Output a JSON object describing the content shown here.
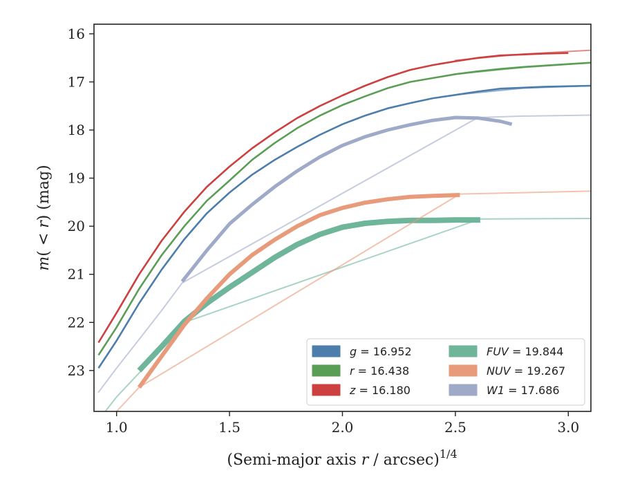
{
  "chart_data": {
    "type": "line",
    "xlabel": "(Semi-major axis r / arcsec)^1/4",
    "xlabel_parts": {
      "prefix": "(Semi-major axis ",
      "var": "r",
      "suffix": " / arcsec)",
      "sup": "1/4"
    },
    "ylabel": "m(< r) (mag)",
    "ylabel_parts": {
      "var": "m",
      "mid": "( < ",
      "var2": "r",
      "suffix": ") (mag)"
    },
    "xlim": [
      0.9,
      3.1
    ],
    "ylim": [
      23.85,
      15.8
    ],
    "y_inverted": true,
    "xticks": [
      1.0,
      1.5,
      2.0,
      2.5,
      3.0
    ],
    "xtick_labels": [
      "1.0",
      "1.5",
      "2.0",
      "2.5",
      "3.0"
    ],
    "yticks": [
      16,
      17,
      18,
      19,
      20,
      21,
      22,
      23
    ],
    "ytick_labels": [
      "16",
      "17",
      "18",
      "19",
      "20",
      "21",
      "22",
      "23"
    ],
    "grid": false,
    "legend_position": "lower-right",
    "series": [
      {
        "name": "g",
        "legend_var": "g",
        "legend_value": "= 16.952",
        "color": "#4c7dab",
        "measured": [
          [
            0.92,
            22.95
          ],
          [
            1.0,
            22.38
          ],
          [
            1.1,
            21.6
          ],
          [
            1.2,
            20.9
          ],
          [
            1.3,
            20.27
          ],
          [
            1.4,
            19.73
          ],
          [
            1.5,
            19.3
          ],
          [
            1.6,
            18.93
          ],
          [
            1.7,
            18.62
          ],
          [
            1.8,
            18.35
          ],
          [
            1.9,
            18.1
          ],
          [
            2.0,
            17.88
          ],
          [
            2.1,
            17.7
          ],
          [
            2.2,
            17.55
          ],
          [
            2.3,
            17.44
          ],
          [
            2.4,
            17.34
          ],
          [
            2.5,
            17.27
          ],
          [
            2.6,
            17.2
          ],
          [
            2.7,
            17.14
          ],
          [
            2.8,
            17.12
          ],
          [
            2.9,
            17.1
          ],
          [
            3.1,
            17.08
          ]
        ],
        "model": [
          [
            2.5,
            17.27
          ],
          [
            2.8,
            17.13
          ],
          [
            3.1,
            17.08
          ]
        ]
      },
      {
        "name": "r",
        "legend_var": "r",
        "legend_value": "= 16.438",
        "color": "#5a9e55",
        "measured": [
          [
            0.92,
            22.68
          ],
          [
            1.0,
            22.1
          ],
          [
            1.1,
            21.3
          ],
          [
            1.2,
            20.6
          ],
          [
            1.3,
            20.0
          ],
          [
            1.4,
            19.47
          ],
          [
            1.5,
            19.05
          ],
          [
            1.6,
            18.62
          ],
          [
            1.7,
            18.27
          ],
          [
            1.8,
            17.96
          ],
          [
            1.9,
            17.7
          ],
          [
            2.0,
            17.48
          ],
          [
            2.1,
            17.3
          ],
          [
            2.2,
            17.13
          ],
          [
            2.3,
            17.0
          ],
          [
            2.4,
            16.92
          ],
          [
            2.5,
            16.84
          ],
          [
            2.6,
            16.78
          ],
          [
            2.7,
            16.73
          ],
          [
            2.8,
            16.69
          ],
          [
            2.9,
            16.66
          ],
          [
            3.0,
            16.63
          ],
          [
            3.1,
            16.6
          ]
        ],
        "model": [
          [
            2.5,
            16.84
          ],
          [
            2.8,
            16.7
          ],
          [
            3.1,
            16.6
          ]
        ]
      },
      {
        "name": "z",
        "legend_var": "z",
        "legend_value": "= 16.180",
        "color": "#cc4040",
        "measured": [
          [
            0.92,
            22.42
          ],
          [
            1.0,
            21.8
          ],
          [
            1.1,
            21.0
          ],
          [
            1.2,
            20.3
          ],
          [
            1.3,
            19.7
          ],
          [
            1.4,
            19.18
          ],
          [
            1.5,
            18.76
          ],
          [
            1.6,
            18.38
          ],
          [
            1.7,
            18.05
          ],
          [
            1.8,
            17.75
          ],
          [
            1.9,
            17.5
          ],
          [
            2.0,
            17.28
          ],
          [
            2.1,
            17.08
          ],
          [
            2.2,
            16.9
          ],
          [
            2.3,
            16.75
          ],
          [
            2.4,
            16.65
          ],
          [
            2.5,
            16.57
          ],
          [
            2.6,
            16.5
          ],
          [
            2.7,
            16.45
          ],
          [
            2.8,
            16.43
          ],
          [
            2.9,
            16.41
          ],
          [
            3.0,
            16.4
          ]
        ],
        "model": [
          [
            2.5,
            16.55
          ],
          [
            2.8,
            16.42
          ],
          [
            3.1,
            16.34
          ]
        ]
      },
      {
        "name": "FUV",
        "legend_var": "FUV",
        "legend_value": "= 19.844",
        "color": "#6fb59a",
        "measured": [
          [
            1.1,
            23.0
          ],
          [
            1.2,
            22.5
          ],
          [
            1.3,
            21.98
          ],
          [
            1.4,
            21.6
          ],
          [
            1.5,
            21.27
          ],
          [
            1.6,
            20.96
          ],
          [
            1.7,
            20.65
          ],
          [
            1.8,
            20.38
          ],
          [
            1.9,
            20.17
          ],
          [
            2.0,
            20.02
          ],
          [
            2.1,
            19.94
          ],
          [
            2.2,
            19.9
          ],
          [
            2.3,
            19.88
          ],
          [
            2.4,
            19.88
          ],
          [
            2.5,
            19.87
          ],
          [
            2.61,
            19.87
          ]
        ],
        "model": [
          [
            0.95,
            23.85
          ],
          [
            1.0,
            23.55
          ],
          [
            1.1,
            23.05
          ],
          [
            1.2,
            22.55
          ],
          [
            1.3,
            22.0
          ],
          [
            2.61,
            19.85
          ],
          [
            3.1,
            19.84
          ]
        ]
      },
      {
        "name": "NUV",
        "legend_var": "NUV",
        "legend_value": "= 19.267",
        "color": "#e89b7a",
        "measured": [
          [
            1.1,
            23.35
          ],
          [
            1.2,
            22.7
          ],
          [
            1.3,
            22.05
          ],
          [
            1.4,
            21.5
          ],
          [
            1.5,
            21.0
          ],
          [
            1.6,
            20.6
          ],
          [
            1.7,
            20.28
          ],
          [
            1.8,
            20.0
          ],
          [
            1.9,
            19.77
          ],
          [
            2.0,
            19.62
          ],
          [
            2.1,
            19.51
          ],
          [
            2.2,
            19.44
          ],
          [
            2.3,
            19.39
          ],
          [
            2.4,
            19.37
          ],
          [
            2.52,
            19.35
          ]
        ],
        "model": [
          [
            1.0,
            23.85
          ],
          [
            1.1,
            23.35
          ],
          [
            2.52,
            19.33
          ],
          [
            3.1,
            19.27
          ]
        ]
      },
      {
        "name": "W1",
        "legend_var": "W1",
        "legend_value": "= 17.686",
        "color": "#9eaac8",
        "measured": [
          [
            1.29,
            21.15
          ],
          [
            1.4,
            20.5
          ],
          [
            1.5,
            19.95
          ],
          [
            1.6,
            19.55
          ],
          [
            1.7,
            19.18
          ],
          [
            1.8,
            18.85
          ],
          [
            1.9,
            18.56
          ],
          [
            2.0,
            18.32
          ],
          [
            2.1,
            18.14
          ],
          [
            2.2,
            18.0
          ],
          [
            2.3,
            17.89
          ],
          [
            2.4,
            17.8
          ],
          [
            2.5,
            17.74
          ],
          [
            2.6,
            17.75
          ],
          [
            2.7,
            17.82
          ],
          [
            2.75,
            17.88
          ]
        ],
        "model": [
          [
            0.92,
            23.45
          ],
          [
            1.0,
            22.95
          ],
          [
            1.1,
            22.35
          ],
          [
            1.2,
            21.75
          ],
          [
            1.29,
            21.18
          ],
          [
            2.6,
            17.74
          ],
          [
            2.8,
            17.71
          ],
          [
            3.1,
            17.69
          ]
        ]
      }
    ],
    "legend_columns": [
      [
        "g",
        "r",
        "z"
      ],
      [
        "FUV",
        "NUV",
        "W1"
      ]
    ]
  }
}
